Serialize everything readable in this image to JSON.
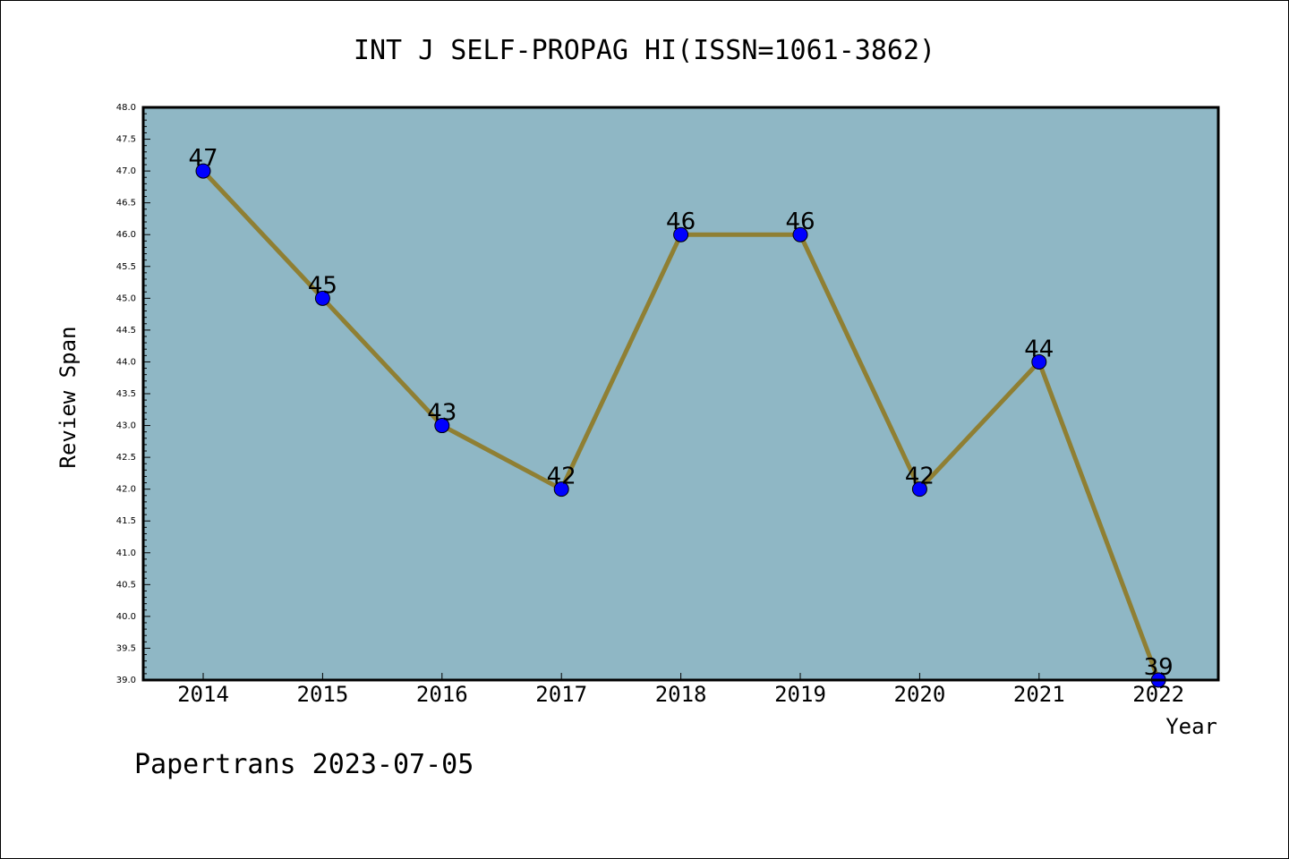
{
  "chart_data": {
    "type": "line",
    "title": "INT J SELF-PROPAG HI(ISSN=1061-3862)",
    "xlabel": "Year",
    "ylabel": "Review Span",
    "categories": [
      "2014",
      "2015",
      "2016",
      "2017",
      "2018",
      "2019",
      "2020",
      "2021",
      "2022"
    ],
    "series": [
      {
        "values": [
          47,
          45,
          43,
          42,
          46,
          46,
          42,
          44,
          39
        ]
      }
    ],
    "data_labels": [
      "47",
      "45",
      "43",
      "42",
      "46",
      "46",
      "42",
      "44",
      "39"
    ],
    "ylim": [
      39.0,
      48.0
    ],
    "yticks": [
      "39.0",
      "39.5",
      "40.0",
      "40.5",
      "41.0",
      "41.5",
      "42.0",
      "42.5",
      "43.0",
      "43.5",
      "44.0",
      "44.5",
      "45.0",
      "45.5",
      "46.0",
      "46.5",
      "47.0",
      "47.5",
      "48.0"
    ],
    "grid": false,
    "colors": {
      "plot_background": "#8fb7c5",
      "line": "#8f7f33",
      "marker": "#0000ff"
    }
  },
  "footer": {
    "text": "Papertrans 2023-07-05"
  }
}
